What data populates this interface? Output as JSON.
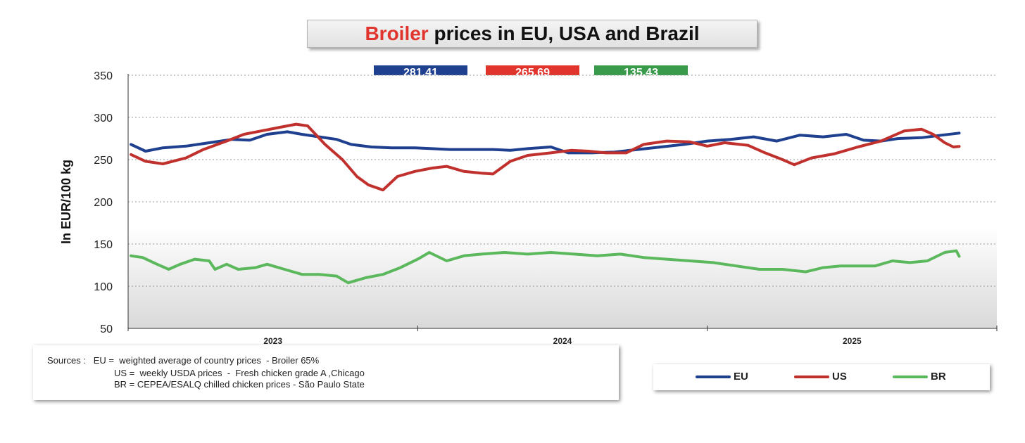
{
  "title": {
    "highlight": "Broiler",
    "rest": " prices in EU, USA and Brazil"
  },
  "value_boxes": [
    {
      "label": "281.41",
      "color": "#1f3f8f"
    },
    {
      "label": "265.69",
      "color": "#e0342c"
    },
    {
      "label": "135.43",
      "color": "#3a9a4c"
    }
  ],
  "sources": {
    "line1": "Sources :   EU =  weighted average of country prices  - Broiler 65%",
    "line2": "US =  weekly USDA prices  -  Fresh chicken grade A ,Chicago",
    "line3": "BR = CEPEA/ESALQ chilled chicken prices - São Paulo State"
  },
  "legend": [
    {
      "label": "EU",
      "color": "#1f3f8f"
    },
    {
      "label": "US",
      "color": "#c0302c"
    },
    {
      "label": "BR",
      "color": "#5cb85c"
    }
  ],
  "chart_data": {
    "type": "line",
    "title": "Broiler prices in EU, USA and Brazil",
    "ylabel": "In EUR/100 kg",
    "xlabel": "",
    "ylim": [
      50,
      350
    ],
    "yticks": [
      50,
      100,
      150,
      200,
      250,
      300,
      350
    ],
    "xticks": [
      "2023",
      "2024",
      "2025"
    ],
    "xlim": [
      2022.5,
      2025.5
    ],
    "grid": true,
    "legend_position": "bottom-right",
    "series": [
      {
        "name": "EU",
        "color": "#1f3f8f",
        "points": [
          [
            2022.51,
            268
          ],
          [
            2022.56,
            260
          ],
          [
            2022.62,
            264
          ],
          [
            2022.7,
            266
          ],
          [
            2022.78,
            270
          ],
          [
            2022.86,
            274
          ],
          [
            2022.92,
            273
          ],
          [
            2022.98,
            280
          ],
          [
            2023.05,
            283
          ],
          [
            2023.1,
            280
          ],
          [
            2023.16,
            277
          ],
          [
            2023.22,
            274
          ],
          [
            2023.27,
            268
          ],
          [
            2023.34,
            265
          ],
          [
            2023.41,
            264
          ],
          [
            2023.49,
            264
          ],
          [
            2023.55,
            263
          ],
          [
            2023.61,
            262
          ],
          [
            2023.68,
            262
          ],
          [
            2023.76,
            262
          ],
          [
            2023.82,
            261
          ],
          [
            2023.88,
            263
          ],
          [
            2023.96,
            265
          ],
          [
            2024.02,
            258
          ],
          [
            2024.1,
            258
          ],
          [
            2024.18,
            259
          ],
          [
            2024.26,
            262
          ],
          [
            2024.34,
            265
          ],
          [
            2024.42,
            268
          ],
          [
            2024.5,
            272
          ],
          [
            2024.58,
            274
          ],
          [
            2024.66,
            277
          ],
          [
            2024.74,
            272
          ],
          [
            2024.82,
            279
          ],
          [
            2024.9,
            277
          ],
          [
            2024.98,
            280
          ],
          [
            2025.04,
            273
          ],
          [
            2025.1,
            272
          ],
          [
            2025.16,
            275
          ],
          [
            2025.24,
            276
          ],
          [
            2025.31,
            279
          ],
          [
            2025.37,
            281.41
          ]
        ]
      },
      {
        "name": "US",
        "color": "#c0302c",
        "points": [
          [
            2022.51,
            256
          ],
          [
            2022.56,
            248
          ],
          [
            2022.62,
            245
          ],
          [
            2022.7,
            252
          ],
          [
            2022.76,
            262
          ],
          [
            2022.84,
            272
          ],
          [
            2022.9,
            280
          ],
          [
            2022.96,
            284
          ],
          [
            2023.02,
            288
          ],
          [
            2023.08,
            292
          ],
          [
            2023.12,
            290
          ],
          [
            2023.18,
            268
          ],
          [
            2023.24,
            250
          ],
          [
            2023.29,
            230
          ],
          [
            2023.33,
            220
          ],
          [
            2023.38,
            214
          ],
          [
            2023.43,
            230
          ],
          [
            2023.49,
            236
          ],
          [
            2023.55,
            240
          ],
          [
            2023.6,
            242
          ],
          [
            2023.66,
            236
          ],
          [
            2023.72,
            234
          ],
          [
            2023.76,
            233
          ],
          [
            2023.82,
            248
          ],
          [
            2023.88,
            255
          ],
          [
            2023.96,
            258
          ],
          [
            2024.03,
            261
          ],
          [
            2024.09,
            260
          ],
          [
            2024.15,
            258
          ],
          [
            2024.22,
            258
          ],
          [
            2024.28,
            268
          ],
          [
            2024.36,
            272
          ],
          [
            2024.44,
            271
          ],
          [
            2024.5,
            266
          ],
          [
            2024.56,
            270
          ],
          [
            2024.64,
            267
          ],
          [
            2024.7,
            258
          ],
          [
            2024.76,
            250
          ],
          [
            2024.8,
            244
          ],
          [
            2024.86,
            252
          ],
          [
            2024.94,
            257
          ],
          [
            2025.02,
            265
          ],
          [
            2025.1,
            272
          ],
          [
            2025.18,
            284
          ],
          [
            2025.24,
            286
          ],
          [
            2025.28,
            280
          ],
          [
            2025.32,
            270
          ],
          [
            2025.35,
            265
          ],
          [
            2025.37,
            265.69
          ]
        ]
      },
      {
        "name": "BR",
        "color": "#5cb85c",
        "points": [
          [
            2022.51,
            136
          ],
          [
            2022.55,
            134
          ],
          [
            2022.6,
            126
          ],
          [
            2022.64,
            120
          ],
          [
            2022.68,
            126
          ],
          [
            2022.73,
            132
          ],
          [
            2022.78,
            130
          ],
          [
            2022.8,
            120
          ],
          [
            2022.84,
            126
          ],
          [
            2022.88,
            120
          ],
          [
            2022.94,
            122
          ],
          [
            2022.98,
            126
          ],
          [
            2023.04,
            120
          ],
          [
            2023.1,
            114
          ],
          [
            2023.16,
            114
          ],
          [
            2023.22,
            112
          ],
          [
            2023.26,
            104
          ],
          [
            2023.32,
            110
          ],
          [
            2023.38,
            114
          ],
          [
            2023.44,
            122
          ],
          [
            2023.5,
            132
          ],
          [
            2023.54,
            140
          ],
          [
            2023.6,
            130
          ],
          [
            2023.66,
            136
          ],
          [
            2023.72,
            138
          ],
          [
            2023.8,
            140
          ],
          [
            2023.88,
            138
          ],
          [
            2023.96,
            140
          ],
          [
            2024.04,
            138
          ],
          [
            2024.12,
            136
          ],
          [
            2024.2,
            138
          ],
          [
            2024.28,
            134
          ],
          [
            2024.36,
            132
          ],
          [
            2024.44,
            130
          ],
          [
            2024.52,
            128
          ],
          [
            2024.6,
            124
          ],
          [
            2024.68,
            120
          ],
          [
            2024.76,
            120
          ],
          [
            2024.84,
            117
          ],
          [
            2024.9,
            122
          ],
          [
            2024.96,
            124
          ],
          [
            2025.02,
            124
          ],
          [
            2025.08,
            124
          ],
          [
            2025.14,
            130
          ],
          [
            2025.2,
            128
          ],
          [
            2025.26,
            130
          ],
          [
            2025.32,
            140
          ],
          [
            2025.36,
            142
          ],
          [
            2025.37,
            135.43
          ]
        ]
      }
    ]
  }
}
